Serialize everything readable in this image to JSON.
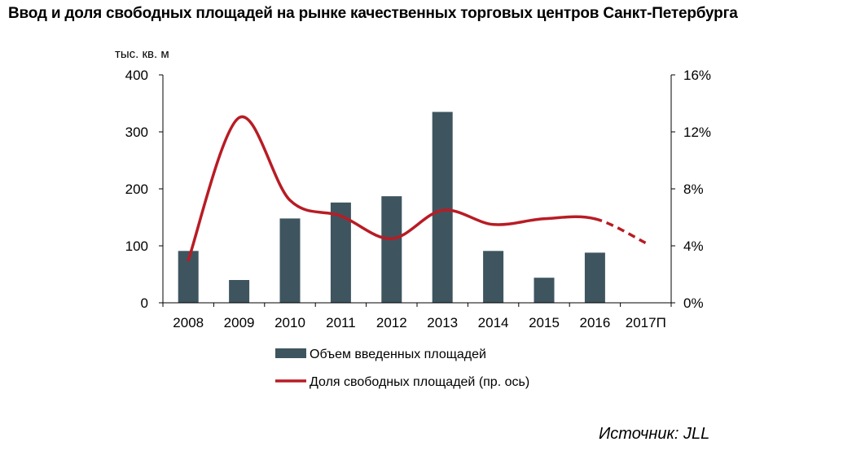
{
  "title": "Ввод и доля свободных площадей на рынке качественных торговых центров Санкт-Петербурга",
  "unit_label": "тыс. кв. м",
  "source": "Источник: JLL",
  "colors": {
    "bar": "#3e5560",
    "line": "#b81c24",
    "axis": "#000000"
  },
  "chart_data": {
    "type": "bar",
    "categories": [
      "2008",
      "2009",
      "2010",
      "2011",
      "2012",
      "2013",
      "2014",
      "2015",
      "2016",
      "2017П"
    ],
    "ylim": [
      0,
      400
    ],
    "y_ticks": [
      "0",
      "100",
      "200",
      "300",
      "400"
    ],
    "y2lim": [
      0,
      16
    ],
    "y2_ticks": [
      "0%",
      "4%",
      "8%",
      "12%",
      "16%"
    ],
    "series": [
      {
        "name": "Объем введенных площадей",
        "type": "bar",
        "axis": "left",
        "values": [
          91,
          40,
          148,
          176,
          187,
          335,
          91,
          44,
          88,
          null
        ]
      },
      {
        "name": "Доля свободных площадей (пр. ось)",
        "type": "line",
        "axis": "right",
        "values": [
          3.0,
          13.0,
          7.2,
          6.1,
          4.5,
          6.5,
          5.5,
          5.9,
          5.9,
          4.2
        ],
        "forecast_from_index": 8
      }
    ]
  }
}
